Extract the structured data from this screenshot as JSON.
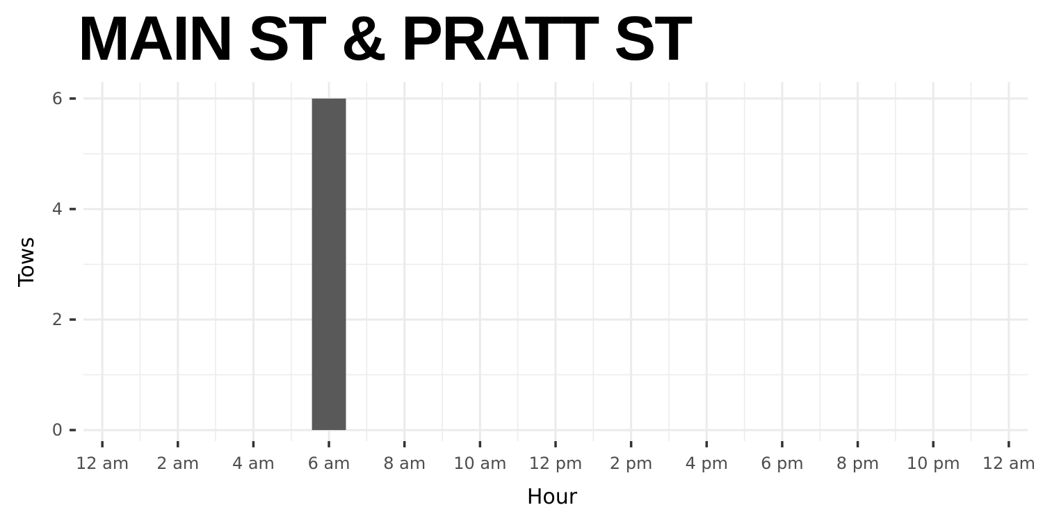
{
  "chart_data": {
    "type": "bar",
    "title": "MAIN ST & PRATT ST",
    "xlabel": "Hour",
    "ylabel": "Tows",
    "x_ticks": [
      "12 am",
      "2 am",
      "4 am",
      "6 am",
      "8 am",
      "10 am",
      "12 pm",
      "2 pm",
      "4 pm",
      "6 pm",
      "8 pm",
      "10 pm",
      "12 am"
    ],
    "y_ticks": [
      0,
      2,
      4,
      6
    ],
    "xlim": [
      -0.5,
      24.5
    ],
    "ylim": [
      -0.2,
      6.3
    ],
    "grid": true,
    "bars": [
      {
        "hour": 6,
        "tows": 6
      }
    ],
    "colors": {
      "bar": "#595959",
      "grid": "#ebebeb",
      "tick": "#333333"
    }
  }
}
